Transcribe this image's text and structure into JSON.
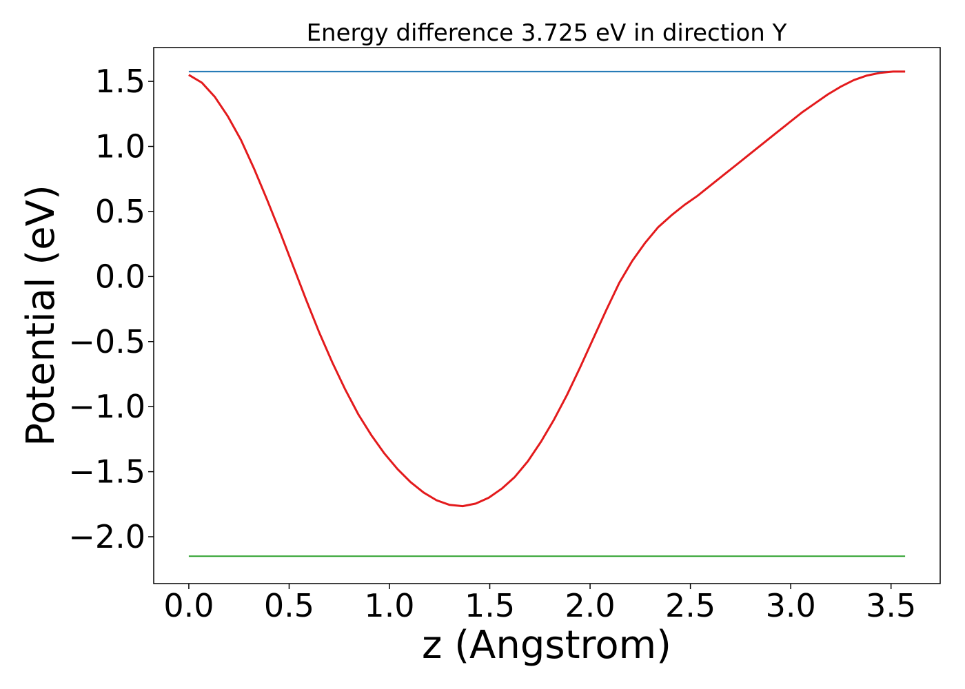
{
  "chart_data": {
    "type": "line",
    "title": "Energy difference 3.725 eV in direction Y",
    "xlabel": "z (Angstrom)",
    "ylabel": "Potential (eV)",
    "xlim": [
      -0.175,
      3.745
    ],
    "ylim": [
      -2.36,
      1.76
    ],
    "xticks": [
      0.0,
      0.5,
      1.0,
      1.5,
      2.0,
      2.5,
      3.0,
      3.5
    ],
    "xtick_labels": [
      "0.0",
      "0.5",
      "1.0",
      "1.5",
      "2.0",
      "2.5",
      "3.0",
      "3.5"
    ],
    "yticks": [
      -2.0,
      -1.5,
      -1.0,
      -0.5,
      0.0,
      0.5,
      1.0,
      1.5
    ],
    "ytick_labels": [
      "−2.0",
      "−1.5",
      "−1.0",
      "−0.5",
      "0.0",
      "0.5",
      "1.0",
      "1.5"
    ],
    "grid": false,
    "series": [
      {
        "color": "#1f77b4",
        "x": [
          0.0,
          3.57
        ],
        "y": [
          1.575,
          1.575
        ]
      },
      {
        "color": "#2ca02c",
        "x": [
          0.0,
          3.57
        ],
        "y": [
          -2.15,
          -2.15
        ]
      },
      {
        "color": "#e31a1c",
        "x": [
          0.0,
          0.065,
          0.13,
          0.195,
          0.26,
          0.325,
          0.39,
          0.455,
          0.52,
          0.585,
          0.65,
          0.715,
          0.78,
          0.845,
          0.91,
          0.975,
          1.04,
          1.105,
          1.17,
          1.235,
          1.3,
          1.365,
          1.43,
          1.495,
          1.56,
          1.625,
          1.69,
          1.755,
          1.82,
          1.885,
          1.95,
          2.015,
          2.08,
          2.145,
          2.21,
          2.275,
          2.34,
          2.405,
          2.47,
          2.535,
          2.6,
          2.665,
          2.73,
          2.795,
          2.86,
          2.925,
          2.99,
          3.055,
          3.12,
          3.185,
          3.25,
          3.315,
          3.38,
          3.445,
          3.51,
          3.57
        ],
        "y": [
          1.55,
          1.49,
          1.38,
          1.23,
          1.05,
          0.83,
          0.59,
          0.34,
          0.08,
          -0.18,
          -0.43,
          -0.66,
          -0.87,
          -1.06,
          -1.22,
          -1.36,
          -1.48,
          -1.58,
          -1.66,
          -1.72,
          -1.755,
          -1.765,
          -1.745,
          -1.7,
          -1.63,
          -1.54,
          -1.42,
          -1.27,
          -1.1,
          -0.91,
          -0.7,
          -0.48,
          -0.26,
          -0.05,
          0.12,
          0.26,
          0.38,
          0.47,
          0.55,
          0.62,
          0.7,
          0.78,
          0.86,
          0.94,
          1.02,
          1.1,
          1.18,
          1.26,
          1.33,
          1.4,
          1.46,
          1.51,
          1.545,
          1.565,
          1.575,
          1.575
        ]
      }
    ]
  }
}
